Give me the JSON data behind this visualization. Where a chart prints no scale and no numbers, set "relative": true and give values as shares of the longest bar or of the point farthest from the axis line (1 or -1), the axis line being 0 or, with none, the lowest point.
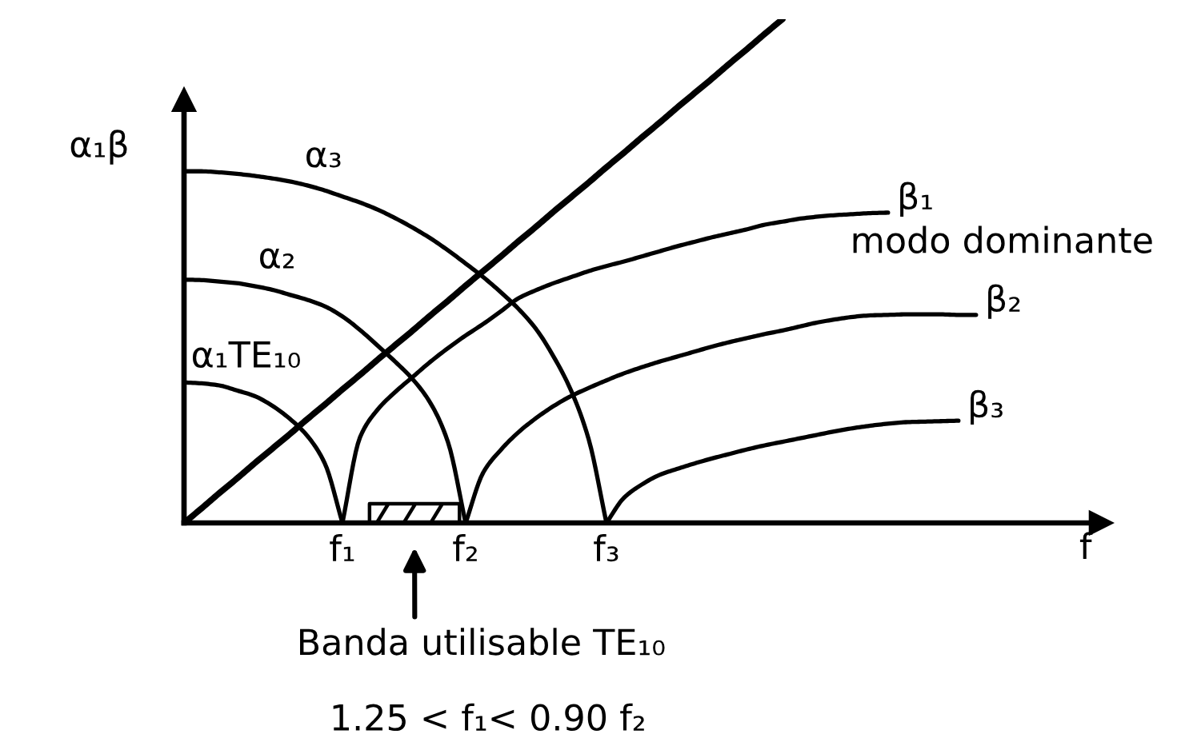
{
  "chart_data": {
    "type": "line",
    "relative": true,
    "xlabel": "f",
    "ylabel": "α₁β",
    "categories": [
      null,
      null,
      null,
      null,
      null,
      null,
      null,
      null,
      null,
      "f₁",
      null,
      null,
      null,
      null,
      null,
      null,
      "f₂",
      null,
      null,
      null,
      null,
      null,
      null,
      null,
      "f₃",
      null,
      null,
      null,
      null,
      null,
      null,
      null,
      null,
      null,
      null,
      null,
      null,
      null,
      null,
      null,
      null,
      null,
      null,
      null,
      null,
      null,
      null,
      null,
      null,
      null,
      null,
      null,
      null
    ],
    "series": [
      {
        "color": "#000000",
        "values": [
          0,
          0.029,
          0.059,
          0.088,
          0.118,
          0.147,
          0.176,
          0.206,
          0.235,
          0.265,
          0.294,
          0.324,
          0.353,
          0.382,
          0.412,
          0.441,
          0.471,
          0.5,
          0.529,
          0.559,
          0.588,
          0.618,
          0.647,
          0.676,
          0.706,
          0.735,
          0.765,
          0.794,
          0.824,
          0.853,
          0.882,
          0.912,
          0.941,
          0.971,
          1,
          null,
          null,
          null,
          null,
          null,
          null,
          null,
          null,
          null,
          null,
          null,
          null,
          null,
          null,
          null,
          null,
          null,
          null
        ]
      },
      {
        "name": "α₁TE₁₀",
        "color": "#000000",
        "values": [
          0.279,
          0.277,
          0.273,
          0.263,
          0.252,
          0.233,
          0.207,
          0.173,
          0.118,
          0,
          null,
          null,
          null,
          null,
          null,
          null,
          null,
          null,
          null,
          null,
          null,
          null,
          null,
          null,
          null,
          null,
          null,
          null,
          null,
          null,
          null,
          null,
          null,
          null,
          null,
          null,
          null,
          null,
          null,
          null,
          null,
          null,
          null,
          null,
          null,
          null,
          null,
          null,
          null,
          null,
          null,
          null,
          null
        ]
      },
      {
        "name": "α₂",
        "color": "#000000",
        "values": [
          0.483,
          0.482,
          0.479,
          0.476,
          0.47,
          0.463,
          0.453,
          0.443,
          0.43,
          0.41,
          0.383,
          0.352,
          0.32,
          0.285,
          0.238,
          0.16,
          0,
          null,
          null,
          null,
          null,
          null,
          null,
          null,
          null,
          null,
          null,
          null,
          null,
          null,
          null,
          null,
          null,
          null,
          null,
          null,
          null,
          null,
          null,
          null,
          null,
          null,
          null,
          null,
          null,
          null,
          null,
          null,
          null,
          null,
          null,
          null,
          null
        ]
      },
      {
        "name": "α₃",
        "color": "#000000",
        "values": [
          0.698,
          0.698,
          0.696,
          0.693,
          0.689,
          0.684,
          0.678,
          0.67,
          0.66,
          0.648,
          0.636,
          0.622,
          0.605,
          0.586,
          0.565,
          0.541,
          0.515,
          0.488,
          0.458,
          0.425,
          0.385,
          0.33,
          0.262,
          0.165,
          0,
          null,
          null,
          null,
          null,
          null,
          null,
          null,
          null,
          null,
          null,
          null,
          null,
          null,
          null,
          null,
          null,
          null,
          null,
          null,
          null,
          null,
          null,
          null,
          null,
          null,
          null,
          null,
          null
        ]
      },
      {
        "name": "β₁",
        "color": "#000000",
        "values": [
          null,
          null,
          null,
          null,
          null,
          null,
          null,
          null,
          null,
          0,
          0.17,
          0.225,
          0.26,
          0.29,
          0.32,
          0.347,
          0.372,
          0.395,
          0.42,
          0.446,
          0.462,
          0.476,
          0.488,
          0.5,
          0.51,
          0.519,
          0.529,
          0.539,
          0.549,
          0.558,
          0.567,
          0.575,
          0.583,
          0.592,
          0.598,
          0.604,
          0.608,
          0.611,
          0.613,
          0.615,
          0.616,
          null,
          null,
          null,
          null,
          null,
          null,
          null,
          null,
          null,
          null,
          null,
          null
        ]
      },
      {
        "name": "β₂",
        "color": "#000000",
        "values": [
          null,
          null,
          null,
          null,
          null,
          null,
          null,
          null,
          null,
          null,
          null,
          null,
          null,
          null,
          null,
          null,
          0,
          0.1,
          0.145,
          0.18,
          0.208,
          0.232,
          0.252,
          0.268,
          0.283,
          0.297,
          0.309,
          0.32,
          0.33,
          0.34,
          0.35,
          0.359,
          0.367,
          0.375,
          0.382,
          0.39,
          0.398,
          0.404,
          0.409,
          0.412,
          0.413,
          0.414,
          0.414,
          0.414,
          0.413,
          0.413,
          null,
          null,
          null,
          null,
          null,
          null,
          null
        ]
      },
      {
        "name": "β₃",
        "color": "#000000",
        "values": [
          null,
          null,
          null,
          null,
          null,
          null,
          null,
          null,
          null,
          null,
          null,
          null,
          null,
          null,
          null,
          null,
          null,
          null,
          null,
          null,
          null,
          null,
          null,
          null,
          0,
          0.05,
          0.076,
          0.095,
          0.107,
          0.118,
          0.128,
          0.137,
          0.146,
          0.154,
          0.161,
          0.168,
          0.175,
          0.182,
          0.188,
          0.193,
          0.197,
          0.2,
          0.201,
          0.202,
          0.203,
          null,
          null,
          null,
          null,
          null,
          null,
          null,
          null
        ]
      }
    ],
    "annotations": [
      "modo dominante",
      "Banda utilisable TE₁₀",
      "1.25 < f₁< 0.90 f₂"
    ]
  }
}
